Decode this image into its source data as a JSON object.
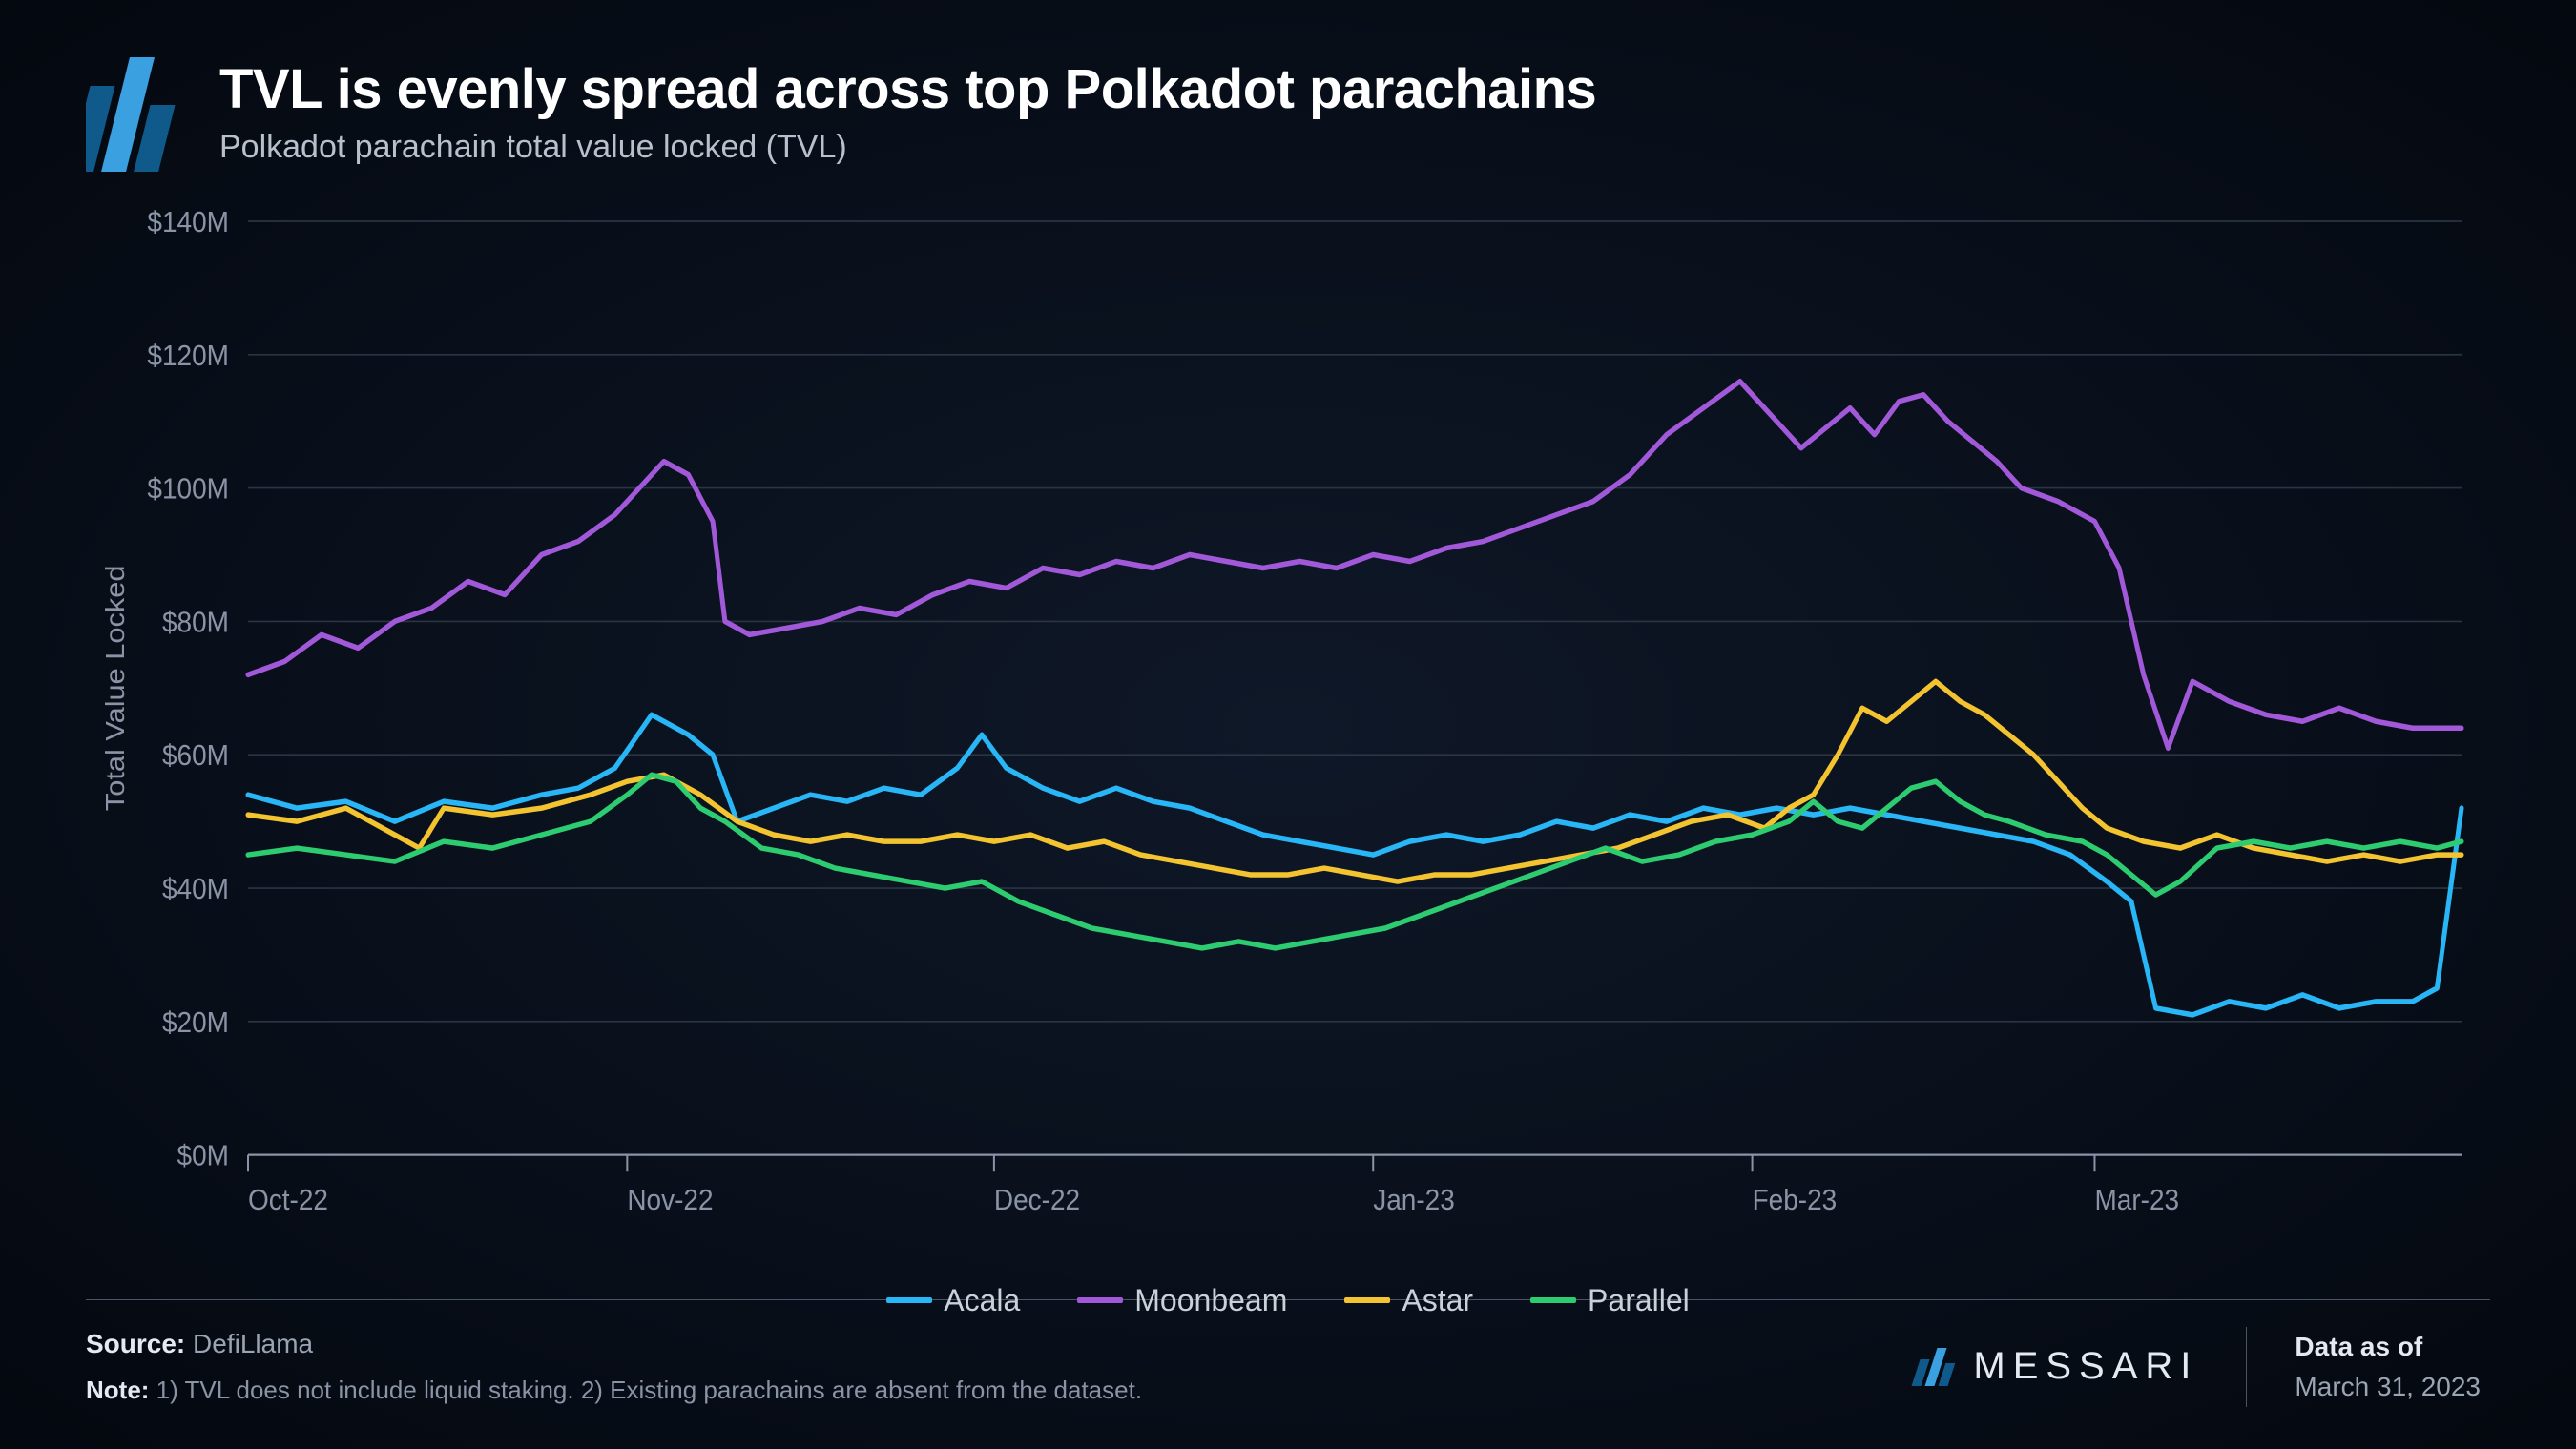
{
  "header": {
    "title": "TVL is evenly spread across top Polkadot parachains",
    "subtitle": "Polkadot parachain total value locked (TVL)"
  },
  "logo": {
    "bar_colors": [
      "#0f5a8a",
      "#3aa0e0",
      "#0f5a8a"
    ],
    "bar_heights": [
      90,
      120,
      70
    ]
  },
  "chart": {
    "type": "line",
    "background": "transparent",
    "grid_color": "#2a3442",
    "axis_color": "#8a94a6",
    "axis_fontsize": 28,
    "ylabel": "Total Value Locked",
    "ylabel_fontsize": 28,
    "ylim": [
      0,
      140
    ],
    "ytick_step": 20,
    "ytick_prefix": "$",
    "ytick_suffix": "M",
    "x_labels": [
      "Oct-22",
      "Nov-22",
      "Dec-22",
      "Jan-23",
      "Feb-23",
      "Mar-23"
    ],
    "x_positions": [
      0,
      31,
      61,
      92,
      123,
      151
    ],
    "x_domain": [
      0,
      181
    ],
    "line_width": 5,
    "series": [
      {
        "name": "Acala",
        "color": "#29b6f6",
        "points": [
          [
            0,
            54
          ],
          [
            4,
            52
          ],
          [
            8,
            53
          ],
          [
            12,
            50
          ],
          [
            16,
            53
          ],
          [
            20,
            52
          ],
          [
            24,
            54
          ],
          [
            27,
            55
          ],
          [
            30,
            58
          ],
          [
            33,
            66
          ],
          [
            36,
            63
          ],
          [
            38,
            60
          ],
          [
            40,
            50
          ],
          [
            43,
            52
          ],
          [
            46,
            54
          ],
          [
            49,
            53
          ],
          [
            52,
            55
          ],
          [
            55,
            54
          ],
          [
            58,
            58
          ],
          [
            60,
            63
          ],
          [
            62,
            58
          ],
          [
            65,
            55
          ],
          [
            68,
            53
          ],
          [
            71,
            55
          ],
          [
            74,
            53
          ],
          [
            77,
            52
          ],
          [
            80,
            50
          ],
          [
            83,
            48
          ],
          [
            86,
            47
          ],
          [
            89,
            46
          ],
          [
            92,
            45
          ],
          [
            95,
            47
          ],
          [
            98,
            48
          ],
          [
            101,
            47
          ],
          [
            104,
            48
          ],
          [
            107,
            50
          ],
          [
            110,
            49
          ],
          [
            113,
            51
          ],
          [
            116,
            50
          ],
          [
            119,
            52
          ],
          [
            122,
            51
          ],
          [
            125,
            52
          ],
          [
            128,
            51
          ],
          [
            131,
            52
          ],
          [
            134,
            51
          ],
          [
            137,
            50
          ],
          [
            140,
            49
          ],
          [
            143,
            48
          ],
          [
            146,
            47
          ],
          [
            149,
            45
          ],
          [
            152,
            41
          ],
          [
            154,
            38
          ],
          [
            156,
            22
          ],
          [
            159,
            21
          ],
          [
            162,
            23
          ],
          [
            165,
            22
          ],
          [
            168,
            24
          ],
          [
            171,
            22
          ],
          [
            174,
            23
          ],
          [
            177,
            23
          ],
          [
            179,
            25
          ],
          [
            181,
            52
          ]
        ]
      },
      {
        "name": "Moonbeam",
        "color": "#a259d9",
        "points": [
          [
            0,
            72
          ],
          [
            3,
            74
          ],
          [
            6,
            78
          ],
          [
            9,
            76
          ],
          [
            12,
            80
          ],
          [
            15,
            82
          ],
          [
            18,
            86
          ],
          [
            21,
            84
          ],
          [
            24,
            90
          ],
          [
            27,
            92
          ],
          [
            30,
            96
          ],
          [
            32,
            100
          ],
          [
            34,
            104
          ],
          [
            36,
            102
          ],
          [
            38,
            95
          ],
          [
            39,
            80
          ],
          [
            41,
            78
          ],
          [
            44,
            79
          ],
          [
            47,
            80
          ],
          [
            50,
            82
          ],
          [
            53,
            81
          ],
          [
            56,
            84
          ],
          [
            59,
            86
          ],
          [
            62,
            85
          ],
          [
            65,
            88
          ],
          [
            68,
            87
          ],
          [
            71,
            89
          ],
          [
            74,
            88
          ],
          [
            77,
            90
          ],
          [
            80,
            89
          ],
          [
            83,
            88
          ],
          [
            86,
            89
          ],
          [
            89,
            88
          ],
          [
            92,
            90
          ],
          [
            95,
            89
          ],
          [
            98,
            91
          ],
          [
            101,
            92
          ],
          [
            104,
            94
          ],
          [
            107,
            96
          ],
          [
            110,
            98
          ],
          [
            113,
            102
          ],
          [
            116,
            108
          ],
          [
            119,
            112
          ],
          [
            122,
            116
          ],
          [
            125,
            110
          ],
          [
            127,
            106
          ],
          [
            129,
            109
          ],
          [
            131,
            112
          ],
          [
            133,
            108
          ],
          [
            135,
            113
          ],
          [
            137,
            114
          ],
          [
            139,
            110
          ],
          [
            141,
            107
          ],
          [
            143,
            104
          ],
          [
            145,
            100
          ],
          [
            148,
            98
          ],
          [
            151,
            95
          ],
          [
            153,
            88
          ],
          [
            155,
            72
          ],
          [
            157,
            61
          ],
          [
            159,
            71
          ],
          [
            162,
            68
          ],
          [
            165,
            66
          ],
          [
            168,
            65
          ],
          [
            171,
            67
          ],
          [
            174,
            65
          ],
          [
            177,
            64
          ],
          [
            181,
            64
          ]
        ]
      },
      {
        "name": "Astar",
        "color": "#f4c430",
        "points": [
          [
            0,
            51
          ],
          [
            4,
            50
          ],
          [
            8,
            52
          ],
          [
            12,
            48
          ],
          [
            14,
            46
          ],
          [
            16,
            52
          ],
          [
            20,
            51
          ],
          [
            24,
            52
          ],
          [
            28,
            54
          ],
          [
            31,
            56
          ],
          [
            34,
            57
          ],
          [
            37,
            54
          ],
          [
            40,
            50
          ],
          [
            43,
            48
          ],
          [
            46,
            47
          ],
          [
            49,
            48
          ],
          [
            52,
            47
          ],
          [
            55,
            47
          ],
          [
            58,
            48
          ],
          [
            61,
            47
          ],
          [
            64,
            48
          ],
          [
            67,
            46
          ],
          [
            70,
            47
          ],
          [
            73,
            45
          ],
          [
            76,
            44
          ],
          [
            79,
            43
          ],
          [
            82,
            42
          ],
          [
            85,
            42
          ],
          [
            88,
            43
          ],
          [
            91,
            42
          ],
          [
            94,
            41
          ],
          [
            97,
            42
          ],
          [
            100,
            42
          ],
          [
            103,
            43
          ],
          [
            106,
            44
          ],
          [
            109,
            45
          ],
          [
            112,
            46
          ],
          [
            115,
            48
          ],
          [
            118,
            50
          ],
          [
            121,
            51
          ],
          [
            124,
            49
          ],
          [
            126,
            52
          ],
          [
            128,
            54
          ],
          [
            130,
            60
          ],
          [
            132,
            67
          ],
          [
            134,
            65
          ],
          [
            136,
            68
          ],
          [
            138,
            71
          ],
          [
            140,
            68
          ],
          [
            142,
            66
          ],
          [
            144,
            63
          ],
          [
            146,
            60
          ],
          [
            148,
            56
          ],
          [
            150,
            52
          ],
          [
            152,
            49
          ],
          [
            155,
            47
          ],
          [
            158,
            46
          ],
          [
            161,
            48
          ],
          [
            164,
            46
          ],
          [
            167,
            45
          ],
          [
            170,
            44
          ],
          [
            173,
            45
          ],
          [
            176,
            44
          ],
          [
            179,
            45
          ],
          [
            181,
            45
          ]
        ]
      },
      {
        "name": "Parallel",
        "color": "#2ecc71",
        "points": [
          [
            0,
            45
          ],
          [
            4,
            46
          ],
          [
            8,
            45
          ],
          [
            12,
            44
          ],
          [
            16,
            47
          ],
          [
            20,
            46
          ],
          [
            24,
            48
          ],
          [
            28,
            50
          ],
          [
            31,
            54
          ],
          [
            33,
            57
          ],
          [
            35,
            56
          ],
          [
            37,
            52
          ],
          [
            39,
            50
          ],
          [
            42,
            46
          ],
          [
            45,
            45
          ],
          [
            48,
            43
          ],
          [
            51,
            42
          ],
          [
            54,
            41
          ],
          [
            57,
            40
          ],
          [
            60,
            41
          ],
          [
            63,
            38
          ],
          [
            66,
            36
          ],
          [
            69,
            34
          ],
          [
            72,
            33
          ],
          [
            75,
            32
          ],
          [
            78,
            31
          ],
          [
            81,
            32
          ],
          [
            84,
            31
          ],
          [
            87,
            32
          ],
          [
            90,
            33
          ],
          [
            93,
            34
          ],
          [
            96,
            36
          ],
          [
            99,
            38
          ],
          [
            102,
            40
          ],
          [
            105,
            42
          ],
          [
            108,
            44
          ],
          [
            111,
            46
          ],
          [
            114,
            44
          ],
          [
            117,
            45
          ],
          [
            120,
            47
          ],
          [
            123,
            48
          ],
          [
            126,
            50
          ],
          [
            128,
            53
          ],
          [
            130,
            50
          ],
          [
            132,
            49
          ],
          [
            134,
            52
          ],
          [
            136,
            55
          ],
          [
            138,
            56
          ],
          [
            140,
            53
          ],
          [
            142,
            51
          ],
          [
            144,
            50
          ],
          [
            147,
            48
          ],
          [
            150,
            47
          ],
          [
            152,
            45
          ],
          [
            154,
            42
          ],
          [
            156,
            39
          ],
          [
            158,
            41
          ],
          [
            161,
            46
          ],
          [
            164,
            47
          ],
          [
            167,
            46
          ],
          [
            170,
            47
          ],
          [
            173,
            46
          ],
          [
            176,
            47
          ],
          [
            179,
            46
          ],
          [
            181,
            47
          ]
        ]
      }
    ]
  },
  "footer": {
    "source_label": "Source:",
    "source_value": "DefiLlama",
    "note_label": "Note:",
    "note_value": "1) TVL does not include liquid staking. 2) Existing parachains are absent from the dataset.",
    "brand": "MESSARI",
    "date_label": "Data as of",
    "date_value": "March 31, 2023"
  }
}
